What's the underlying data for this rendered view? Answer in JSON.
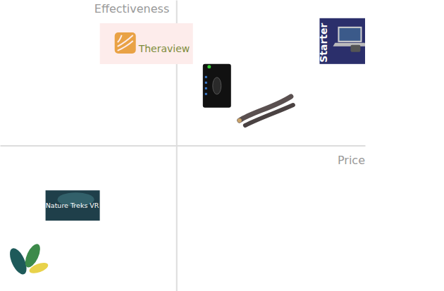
{
  "chart_data": {
    "type": "scatter",
    "x_label": "Price",
    "y_label": "Effectiveness",
    "labels": [
      "Theraview",
      "Starter",
      null,
      null,
      "Nature Treks VR",
      null
    ],
    "x": [
      -0.17,
      0.94,
      0.23,
      0.51,
      -0.59,
      -0.85
    ],
    "values": [
      0.7,
      0.72,
      0.41,
      0.23,
      -0.41,
      -0.78
    ],
    "xlim": [
      -1,
      1.07
    ],
    "ylim": [
      -1,
      1
    ],
    "xticks": [],
    "yticks": [],
    "tick_labels": false,
    "grid": false
  }
}
